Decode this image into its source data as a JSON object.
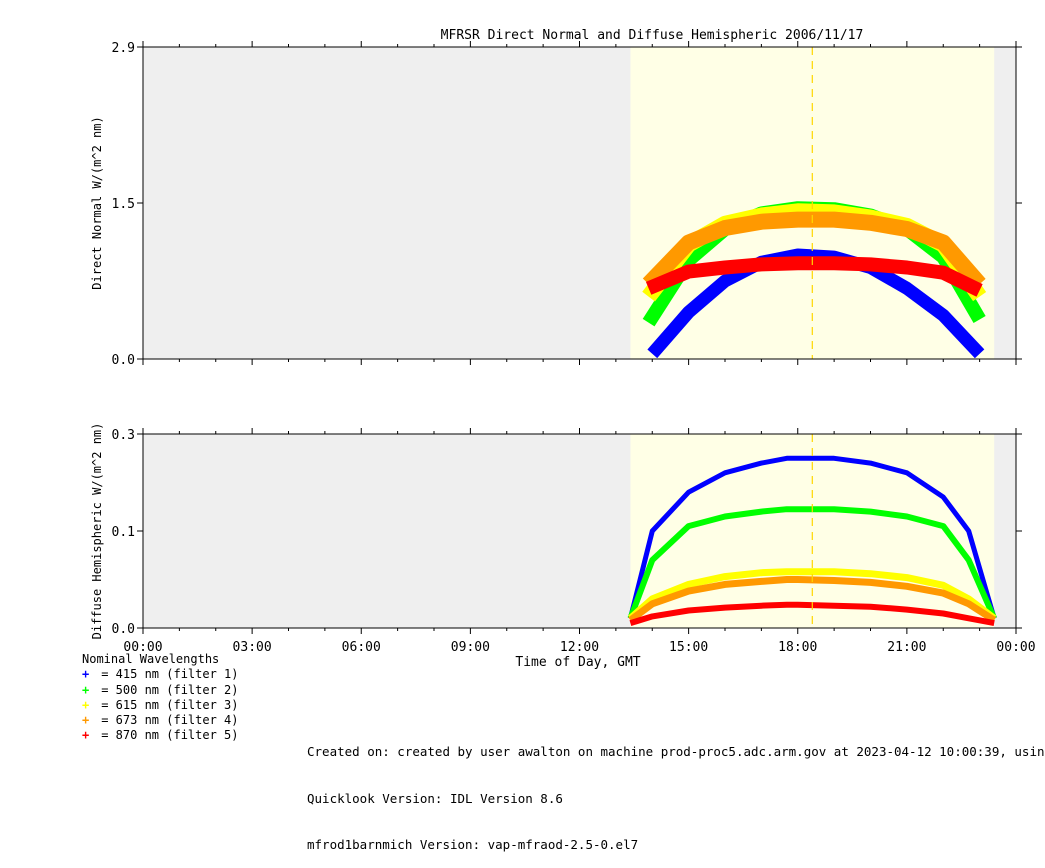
{
  "chart_data": {
    "type": "scatter",
    "title": "MFRSR Direct Normal and Diffuse Hemispheric 2006/11/17",
    "xlabel": "Time of Day, GMT",
    "x_ticks": [
      "00:00",
      "03:00",
      "06:00",
      "09:00",
      "12:00",
      "15:00",
      "18:00",
      "21:00",
      "00:00"
    ],
    "x_tick_hours": [
      0,
      3,
      6,
      9,
      12,
      15,
      18,
      21,
      24
    ],
    "xlim": [
      0,
      24
    ],
    "daylight_hours": [
      13.4,
      23.4
    ],
    "solar_noon_hour": 18.4,
    "panels": [
      {
        "name": "direct-normal",
        "ylabel": "Direct Normal W/(m^2 nm)",
        "ylim": [
          0.0,
          2.9
        ],
        "y_ticks": [
          0.0,
          1.5,
          2.9
        ],
        "y_tick_labels": [
          "0.0",
          "1.5",
          "2.9"
        ],
        "series": [
          {
            "name": "415 nm (filter 1)",
            "color": "#0000ff",
            "x": [
              14.0,
              15.0,
              16.0,
              17.0,
              18.0,
              19.0,
              20.0,
              21.0,
              22.0,
              23.0
            ],
            "y": [
              0.05,
              0.45,
              0.75,
              0.93,
              1.0,
              0.98,
              0.88,
              0.68,
              0.42,
              0.05
            ]
          },
          {
            "name": "500 nm (filter 2)",
            "color": "#00ff00",
            "x": [
              13.9,
              15.0,
              16.0,
              17.0,
              18.0,
              19.0,
              20.0,
              21.0,
              22.0,
              23.0
            ],
            "y": [
              0.35,
              0.95,
              1.25,
              1.4,
              1.45,
              1.44,
              1.38,
              1.25,
              0.98,
              0.38
            ]
          },
          {
            "name": "615 nm (filter 3)",
            "color": "#ffff00",
            "x": [
              13.9,
              15.0,
              16.0,
              17.0,
              18.0,
              19.0,
              20.0,
              21.0,
              22.0,
              23.0
            ],
            "y": [
              0.6,
              1.1,
              1.3,
              1.38,
              1.42,
              1.41,
              1.36,
              1.28,
              1.1,
              0.6
            ]
          },
          {
            "name": "673 nm (filter 4)",
            "color": "#ff9900",
            "x": [
              13.9,
              15.0,
              16.0,
              17.0,
              18.0,
              19.0,
              20.0,
              21.0,
              22.0,
              23.0
            ],
            "y": [
              0.72,
              1.12,
              1.26,
              1.32,
              1.34,
              1.34,
              1.31,
              1.25,
              1.12,
              0.72
            ]
          },
          {
            "name": "870 nm (filter 5)",
            "color": "#ff0000",
            "x": [
              13.9,
              15.0,
              16.0,
              17.0,
              18.0,
              19.0,
              20.0,
              21.0,
              22.0,
              23.0
            ],
            "y": [
              0.68,
              0.84,
              0.88,
              0.91,
              0.92,
              0.92,
              0.91,
              0.88,
              0.83,
              0.66
            ]
          }
        ]
      },
      {
        "name": "diffuse-hemispheric",
        "ylabel": "Diffuse Hemispheric W/(m^2 nm)",
        "ylim": [
          0.0,
          0.3
        ],
        "y_ticks": [
          0.0,
          0.1,
          0.3
        ],
        "y_tick_labels": [
          "0.0",
          "0.1",
          "0.3"
        ],
        "series": [
          {
            "name": "415 nm (filter 1)",
            "color": "#0000ff",
            "x": [
              13.4,
              14.0,
              15.0,
              16.0,
              17.0,
              17.7,
              18.0,
              19.0,
              20.0,
              21.0,
              22.0,
              22.7,
              23.4
            ],
            "y": [
              0.01,
              0.1,
              0.18,
              0.22,
              0.24,
              0.25,
              0.25,
              0.25,
              0.24,
              0.22,
              0.17,
              0.1,
              0.01
            ]
          },
          {
            "name": "500 nm (filter 2)",
            "color": "#00ff00",
            "x": [
              13.4,
              14.0,
              15.0,
              16.0,
              17.0,
              17.7,
              18.0,
              19.0,
              20.0,
              21.0,
              22.0,
              22.7,
              23.4
            ],
            "y": [
              0.01,
              0.07,
              0.11,
              0.13,
              0.14,
              0.145,
              0.145,
              0.145,
              0.14,
              0.13,
              0.11,
              0.07,
              0.01
            ]
          },
          {
            "name": "615 nm (filter 3)",
            "color": "#ffff00",
            "x": [
              13.4,
              14.0,
              15.0,
              16.0,
              17.0,
              17.7,
              18.0,
              19.0,
              20.0,
              21.0,
              22.0,
              22.7,
              23.4
            ],
            "y": [
              0.01,
              0.03,
              0.045,
              0.053,
              0.057,
              0.058,
              0.058,
              0.058,
              0.056,
              0.052,
              0.044,
              0.03,
              0.01
            ]
          },
          {
            "name": "673 nm (filter 4)",
            "color": "#ff9900",
            "x": [
              13.4,
              14.0,
              15.0,
              16.0,
              17.0,
              17.7,
              18.0,
              19.0,
              20.0,
              21.0,
              22.0,
              22.7,
              23.4
            ],
            "y": [
              0.008,
              0.025,
              0.038,
              0.045,
              0.048,
              0.05,
              0.05,
              0.049,
              0.047,
              0.043,
              0.036,
              0.025,
              0.008
            ]
          },
          {
            "name": "870 nm (filter 5)",
            "color": "#ff0000",
            "x": [
              13.4,
              14.0,
              15.0,
              16.0,
              17.0,
              17.7,
              18.0,
              19.0,
              20.0,
              21.0,
              22.0,
              22.7,
              23.4
            ],
            "y": [
              0.005,
              0.012,
              0.018,
              0.021,
              0.023,
              0.024,
              0.024,
              0.023,
              0.022,
              0.019,
              0.015,
              0.01,
              0.005
            ]
          }
        ]
      }
    ]
  },
  "legend": {
    "title": "Nominal Wavelengths",
    "marker": "+",
    "items": [
      {
        "label": " = 415 nm (filter 1)",
        "color": "#0000ff"
      },
      {
        "label": " = 500 nm (filter 2)",
        "color": "#00ff00"
      },
      {
        "label": " = 615 nm (filter 3)",
        "color": "#ffff00"
      },
      {
        "label": " = 673 nm (filter 4)",
        "color": "#ff9900"
      },
      {
        "label": " = 870 nm (filter 5)",
        "color": "#ff0000"
      }
    ]
  },
  "footer": {
    "created": "Created on: created by user awalton on machine prod-proc5.adc.arm.gov at 2023-04-12 10:00:39, usin",
    "quicklook": "Quicklook Version: IDL Version 8.6",
    "version": "mfrod1barnmich Version: vap-mfraod-2.5-0.el7"
  },
  "colors": {
    "night_background": "#efefef",
    "day_background": "#ffffe6",
    "noon_line": "#ffd700"
  }
}
